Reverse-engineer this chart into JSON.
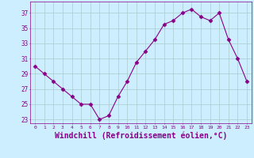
{
  "x": [
    0,
    1,
    2,
    3,
    4,
    5,
    6,
    7,
    8,
    9,
    10,
    11,
    12,
    13,
    14,
    15,
    16,
    17,
    18,
    19,
    20,
    21,
    22,
    23
  ],
  "y": [
    30,
    29,
    28,
    27,
    26,
    25,
    25,
    23,
    23.5,
    26,
    28,
    30.5,
    32,
    33.5,
    35.5,
    36,
    37,
    37.5,
    36.5,
    36,
    37,
    33.5,
    31,
    28
  ],
  "line_color": "#880088",
  "marker": "D",
  "marker_size": 2.5,
  "bg_color": "#cceeff",
  "grid_color": "#aacccc",
  "xlabel": "Windchill (Refroidissement éolien,°C)",
  "xlabel_fontsize": 7,
  "yticks": [
    23,
    25,
    27,
    29,
    31,
    33,
    35,
    37
  ],
  "xticks": [
    0,
    1,
    2,
    3,
    4,
    5,
    6,
    7,
    8,
    9,
    10,
    11,
    12,
    13,
    14,
    15,
    16,
    17,
    18,
    19,
    20,
    21,
    22,
    23
  ],
  "ylim": [
    22.5,
    38.5
  ],
  "xlim": [
    -0.5,
    23.5
  ]
}
